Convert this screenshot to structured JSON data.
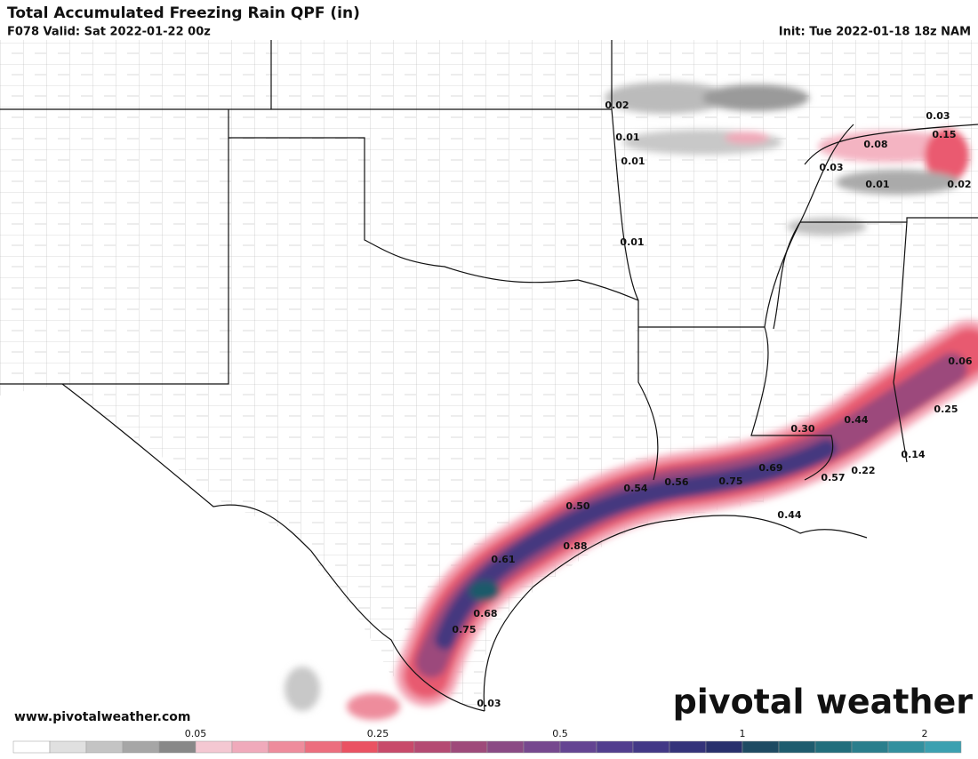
{
  "header": {
    "title": "Total Accumulated Freezing Rain QPF (in)",
    "valid": "F078 Valid: Sat 2022-01-22 00z",
    "init": "Init: Tue 2022-01-18 18z NAM"
  },
  "map": {
    "value_labels": [
      "0.02",
      "0.01",
      "0.01",
      "0.01",
      "0.03",
      "0.08",
      "0.15",
      "0.03",
      "0.01",
      "0.02",
      "0.06",
      "0.25",
      "0.44",
      "0.30",
      "0.69",
      "0.75",
      "0.56",
      "0.54",
      "0.57",
      "0.22",
      "0.14",
      "0.44",
      "0.50",
      "0.88",
      "0.61",
      "0.68",
      "0.75",
      "0.03"
    ]
  },
  "footer": {
    "website": "www.pivotalweather.com",
    "logo": "pivotal weather"
  },
  "colorbar": {
    "colors": [
      "#ffffff",
      "#e0e0e0",
      "#c4c4c4",
      "#a6a6a6",
      "#888888",
      "#f4c8d2",
      "#f0aabb",
      "#ee8c9c",
      "#ec6e7e",
      "#ea5262",
      "#c84a6a",
      "#b44a72",
      "#9e4a7a",
      "#8a4a84",
      "#76488e",
      "#644492",
      "#523e8e",
      "#423886",
      "#34337a",
      "#28306c",
      "#1e4a62",
      "#1e5c6e",
      "#226e7c",
      "#2a7e8c",
      "#32909e",
      "#3ca0b0"
    ],
    "ticks": [
      "0.05",
      "0.25",
      "0.5",
      "1",
      "2"
    ]
  }
}
